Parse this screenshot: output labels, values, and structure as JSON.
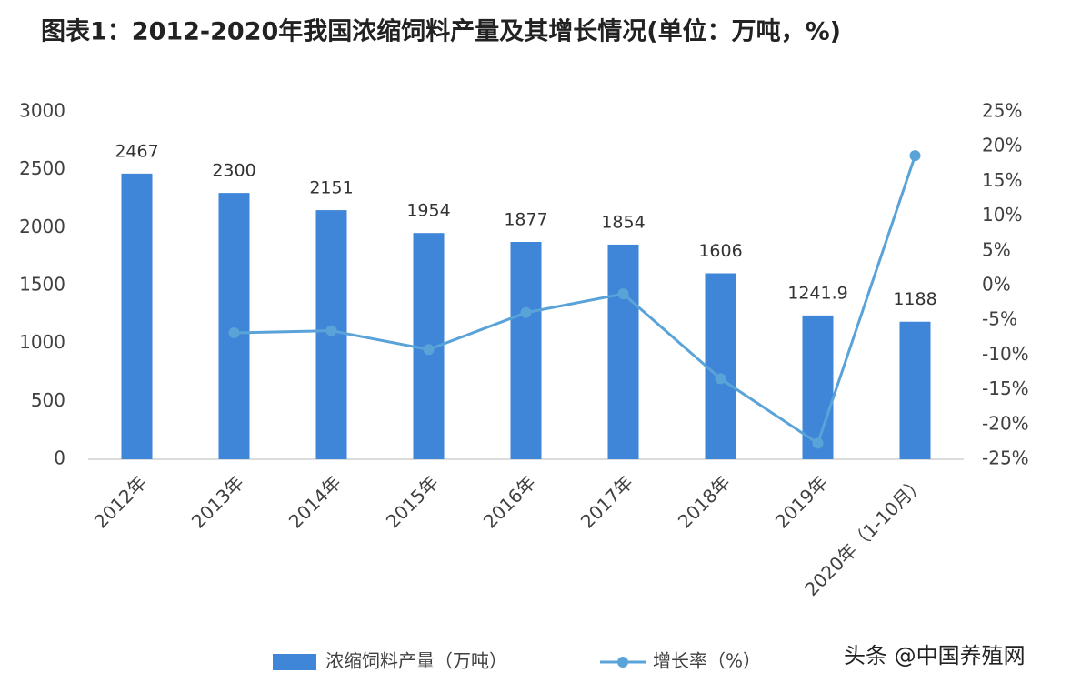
{
  "chart_data": {
    "type": "bar",
    "title": "图表1：2012-2020年我国浓缩饲料产量及其增长情况(单位：万吨，%)",
    "categories": [
      "2012年",
      "2013年",
      "2014年",
      "2015年",
      "2016年",
      "2017年",
      "2018年",
      "2019年",
      "2020年（1-10月）"
    ],
    "series": [
      {
        "name": "浓缩饲料产量（万吨）",
        "type": "bar",
        "color": "#3f86d8",
        "values": [
          2467,
          2300,
          2151,
          1954,
          1877,
          1854,
          1606,
          1241.9,
          1188
        ]
      },
      {
        "name": "增长率（%）",
        "type": "line",
        "axis": "y2",
        "color": "#5aa3d8",
        "values": [
          null,
          -6.8,
          -6.5,
          -9.2,
          -3.9,
          -1.2,
          -13.4,
          -22.7,
          18.7
        ]
      }
    ],
    "ylim": [
      0,
      3000
    ],
    "yticks": [
      0,
      500,
      1000,
      1500,
      2000,
      2500,
      3000
    ],
    "y2lim": [
      -25,
      25
    ],
    "y2ticks": [
      {
        "value": -25,
        "label": "-25%"
      },
      {
        "value": -20,
        "label": "-20%"
      },
      {
        "value": -15,
        "label": "-15%"
      },
      {
        "value": -10,
        "label": "-10%"
      },
      {
        "value": -5,
        "label": "-5%"
      },
      {
        "value": 0,
        "label": "0%"
      },
      {
        "value": 5,
        "label": "5%"
      },
      {
        "value": 10,
        "label": "10%"
      },
      {
        "value": 15,
        "label": "15%"
      },
      {
        "value": 20,
        "label": "20%"
      },
      {
        "value": 25,
        "label": "25%"
      }
    ],
    "grid": false,
    "watermark": "头条 @中国养殖网"
  }
}
